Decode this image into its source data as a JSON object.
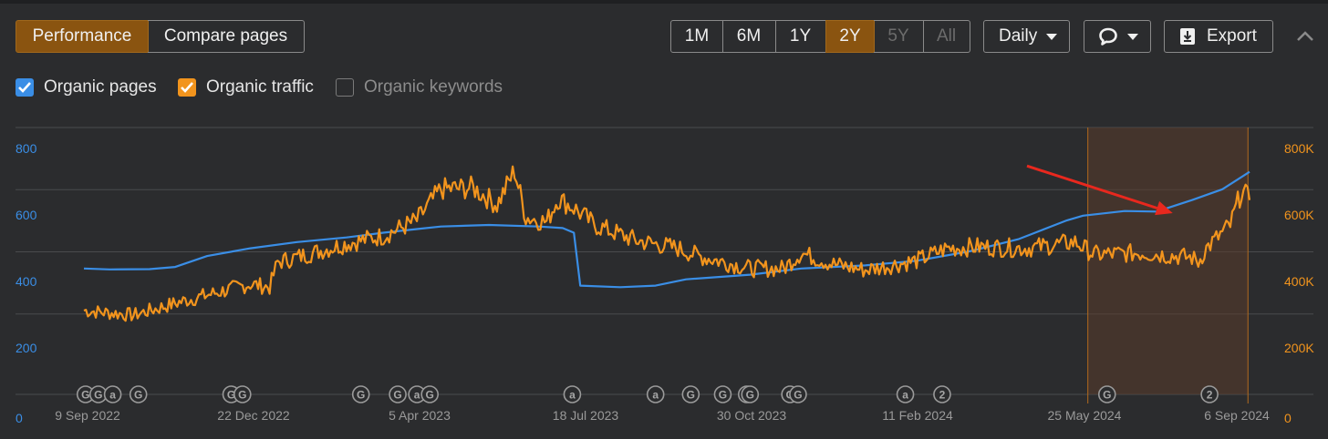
{
  "view_tabs": [
    {
      "label": "Performance",
      "active": true
    },
    {
      "label": "Compare pages",
      "active": false
    }
  ],
  "range_buttons": [
    {
      "label": "1M",
      "state": "normal"
    },
    {
      "label": "6M",
      "state": "normal"
    },
    {
      "label": "1Y",
      "state": "normal"
    },
    {
      "label": "2Y",
      "state": "active"
    },
    {
      "label": "5Y",
      "state": "disabled"
    },
    {
      "label": "All",
      "state": "disabled"
    }
  ],
  "interval_select": {
    "label": "Daily",
    "icon": "chevron-down-icon"
  },
  "annotation_menu": {
    "icon": "speech-bubble-icon"
  },
  "export_button": {
    "label": "Export",
    "icon": "download-icon"
  },
  "collapse_icon": "chevron-up-icon",
  "metrics": [
    {
      "label": "Organic pages",
      "checked": true,
      "color": "#3a8ee6"
    },
    {
      "label": "Organic traffic",
      "checked": true,
      "color": "#f2941d"
    },
    {
      "label": "Organic keywords",
      "checked": false,
      "color": "#8a8a8a"
    }
  ],
  "chart_data": {
    "type": "line",
    "x_tick_labels": [
      "9 Sep 2022",
      "22 Dec 2022",
      "5 Apr 2023",
      "18 Jul 2023",
      "30 Oct 2023",
      "11 Feb 2024",
      "25 May 2024",
      "6 Sep 2024"
    ],
    "x_range": [
      "2022-09-09",
      "2024-09-06"
    ],
    "left_axis": {
      "ticks": [
        "0",
        "200",
        "400",
        "600",
        "800"
      ],
      "range": [
        0,
        800
      ],
      "color": "#3a8ee6"
    },
    "right_axis": {
      "ticks": [
        "0",
        "200K",
        "400K",
        "600K",
        "800K"
      ],
      "range": [
        0,
        800000
      ],
      "color": "#f2941d"
    },
    "grid": true,
    "series": [
      {
        "name": "Organic pages",
        "axis": "left",
        "color": "#3a8ee6",
        "points": [
          [
            "2022-09-09",
            405
          ],
          [
            "2022-09-25",
            402
          ],
          [
            "2022-10-20",
            403
          ],
          [
            "2022-11-05",
            410
          ],
          [
            "2022-11-25",
            445
          ],
          [
            "2022-12-22",
            470
          ],
          [
            "2023-01-20",
            490
          ],
          [
            "2023-02-20",
            505
          ],
          [
            "2023-03-15",
            520
          ],
          [
            "2023-04-05",
            532
          ],
          [
            "2023-04-20",
            540
          ],
          [
            "2023-05-20",
            545
          ],
          [
            "2023-06-20",
            540
          ],
          [
            "2023-07-05",
            535
          ],
          [
            "2023-07-12",
            520
          ],
          [
            "2023-07-16",
            350
          ],
          [
            "2023-08-10",
            345
          ],
          [
            "2023-09-01",
            350
          ],
          [
            "2023-09-20",
            370
          ],
          [
            "2023-10-30",
            385
          ],
          [
            "2023-12-01",
            405
          ],
          [
            "2024-01-10",
            415
          ],
          [
            "2024-02-11",
            430
          ],
          [
            "2024-03-15",
            460
          ],
          [
            "2024-04-15",
            500
          ],
          [
            "2024-05-15",
            560
          ],
          [
            "2024-05-25",
            575
          ],
          [
            "2024-06-20",
            590
          ],
          [
            "2024-07-10",
            588
          ],
          [
            "2024-08-01",
            625
          ],
          [
            "2024-08-20",
            660
          ],
          [
            "2024-09-06",
            716
          ]
        ]
      },
      {
        "name": "Organic traffic",
        "axis": "right",
        "color": "#f2941d",
        "points": [
          [
            "2022-09-09",
            270000
          ],
          [
            "2022-10-10",
            255000
          ],
          [
            "2022-11-10",
            300000
          ],
          [
            "2022-12-22",
            355000
          ],
          [
            "2023-01-03",
            345000
          ],
          [
            "2023-01-08",
            425000
          ],
          [
            "2023-01-30",
            455000
          ],
          [
            "2023-02-20",
            485000
          ],
          [
            "2023-03-15",
            510000
          ],
          [
            "2023-04-05",
            560000
          ],
          [
            "2023-04-20",
            660000
          ],
          [
            "2023-05-10",
            665000
          ],
          [
            "2023-05-25",
            610000
          ],
          [
            "2023-06-05",
            720000
          ],
          [
            "2023-06-12",
            570000
          ],
          [
            "2023-06-25",
            555000
          ],
          [
            "2023-07-02",
            630000
          ],
          [
            "2023-07-12",
            600000
          ],
          [
            "2023-07-25",
            545000
          ],
          [
            "2023-08-20",
            495000
          ],
          [
            "2023-09-15",
            470000
          ],
          [
            "2023-09-28",
            445000
          ],
          [
            "2023-10-30",
            405000
          ],
          [
            "2023-11-20",
            405000
          ],
          [
            "2023-12-01",
            455000
          ],
          [
            "2023-12-20",
            420000
          ],
          [
            "2024-01-10",
            400000
          ],
          [
            "2024-02-11",
            430000
          ],
          [
            "2024-03-01",
            470000
          ],
          [
            "2024-03-20",
            475000
          ],
          [
            "2024-04-20",
            470000
          ],
          [
            "2024-05-20",
            490000
          ],
          [
            "2024-06-01",
            450000
          ],
          [
            "2024-07-01",
            455000
          ],
          [
            "2024-08-01",
            440000
          ],
          [
            "2024-08-05",
            425000
          ],
          [
            "2024-08-10",
            470000
          ],
          [
            "2024-08-25",
            545000
          ],
          [
            "2024-09-01",
            655000
          ],
          [
            "2024-09-06",
            625000
          ]
        ]
      }
    ],
    "annotation_markers": [
      {
        "date": "2022-09-10",
        "glyph": "G"
      },
      {
        "date": "2022-09-18",
        "glyph": "G"
      },
      {
        "date": "2022-09-27",
        "glyph": "a"
      },
      {
        "date": "2022-10-13",
        "glyph": "G"
      },
      {
        "date": "2022-12-10",
        "glyph": "G"
      },
      {
        "date": "2022-12-17",
        "glyph": "G"
      },
      {
        "date": "2023-03-01",
        "glyph": "G"
      },
      {
        "date": "2023-03-24",
        "glyph": "G"
      },
      {
        "date": "2023-04-05",
        "glyph": "a"
      },
      {
        "date": "2023-04-13",
        "glyph": "G"
      },
      {
        "date": "2023-07-11",
        "glyph": "a"
      },
      {
        "date": "2023-09-01",
        "glyph": "a"
      },
      {
        "date": "2023-09-23",
        "glyph": "G"
      },
      {
        "date": "2023-10-13",
        "glyph": "G"
      },
      {
        "date": "2023-10-28",
        "glyph": "G"
      },
      {
        "date": "2023-10-30",
        "glyph": "G"
      },
      {
        "date": "2023-11-24",
        "glyph": "G"
      },
      {
        "date": "2023-11-29",
        "glyph": "G"
      },
      {
        "date": "2024-02-04",
        "glyph": "a"
      },
      {
        "date": "2024-02-27",
        "glyph": "2"
      },
      {
        "date": "2024-06-09",
        "glyph": "G"
      },
      {
        "date": "2024-08-12",
        "glyph": "2"
      }
    ],
    "highlight_range": [
      "2024-05-28",
      "2024-09-05"
    ],
    "arrow": {
      "color": "#e8281e",
      "from": [
        "2024-04-20",
        735
      ],
      "to": [
        "2024-07-20",
        583
      ],
      "axis": "left"
    }
  }
}
